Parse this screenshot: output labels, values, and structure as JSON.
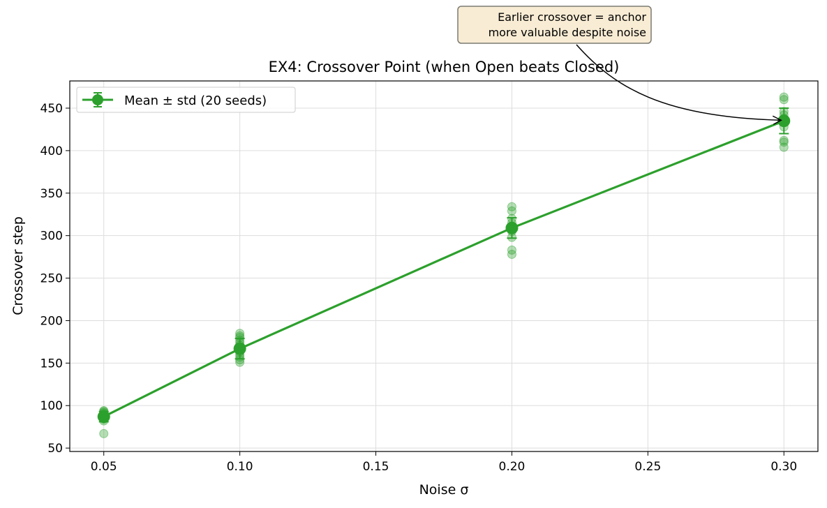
{
  "chart_data": {
    "type": "line",
    "title": "EX4: Crossover Point (when Open beats Closed)",
    "xlabel": "Noise σ",
    "ylabel": "Crossover step",
    "xlim": [
      0.0375,
      0.3125
    ],
    "ylim": [
      46,
      482
    ],
    "xticks": [
      0.05,
      0.1,
      0.15,
      0.2,
      0.25,
      0.3
    ],
    "xtick_labels": [
      "0.05",
      "0.10",
      "0.15",
      "0.20",
      "0.25",
      "0.30"
    ],
    "yticks": [
      50,
      100,
      150,
      200,
      250,
      300,
      350,
      400,
      450
    ],
    "ytick_labels": [
      "50",
      "100",
      "150",
      "200",
      "250",
      "300",
      "350",
      "400",
      "450"
    ],
    "grid": true,
    "legend_position": "upper-left",
    "series": [
      {
        "name": "Mean ± std (20 seeds)",
        "color": "#2ca02c",
        "x": [
          0.05,
          0.1,
          0.2,
          0.3
        ],
        "mean": [
          87,
          167,
          309,
          435
        ],
        "std": [
          6,
          12,
          12,
          15
        ],
        "seeds": [
          [
            67,
            82,
            84,
            86,
            87,
            88,
            89,
            90,
            91,
            92,
            93,
            94
          ],
          [
            151,
            154,
            157,
            160,
            163,
            166,
            168,
            171,
            174,
            177,
            180,
            182,
            185
          ],
          [
            278,
            283,
            298,
            305,
            310,
            315,
            320,
            329,
            334
          ],
          [
            404,
            410,
            412,
            428,
            433,
            438,
            442,
            446,
            460,
            463
          ]
        ]
      }
    ],
    "annotation": {
      "text_lines": [
        "Earlier crossover = anchor",
        "more valuable despite noise"
      ],
      "target_x": 0.3,
      "target_y": 435
    }
  }
}
